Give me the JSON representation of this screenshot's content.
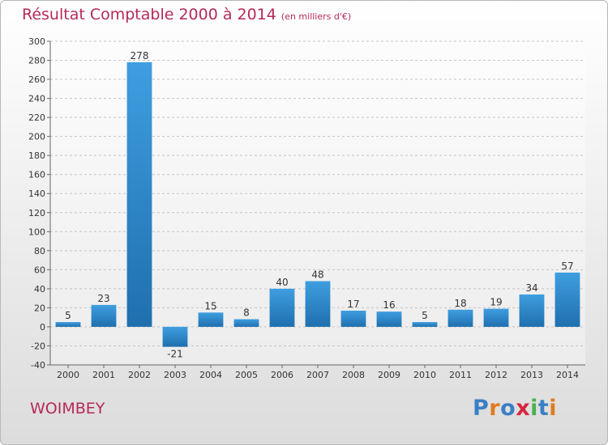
{
  "header": {
    "title": "Résultat Comptable 2000 à 2014",
    "subtitle": "(en milliers d'€)"
  },
  "footer": {
    "commune": "WOIMBEY",
    "logo_letters": [
      {
        "char": "P",
        "color": "#3b7fc4"
      },
      {
        "char": "r",
        "color": "#e07a1f"
      },
      {
        "char": "o",
        "color": "#3b7fc4"
      },
      {
        "char": "x",
        "color": "#d6253f"
      },
      {
        "char": "i",
        "color": "#4caf50"
      },
      {
        "char": "t",
        "color": "#3b7fc4"
      },
      {
        "char": "i",
        "color": "#e07a1f"
      }
    ]
  },
  "chart_data": {
    "type": "bar",
    "title": "Résultat Comptable 2000 à 2014",
    "subtitle": "(en milliers d'€)",
    "categories": [
      "2000",
      "2001",
      "2002",
      "2003",
      "2004",
      "2005",
      "2006",
      "2007",
      "2008",
      "2009",
      "2010",
      "2011",
      "2012",
      "2013",
      "2014"
    ],
    "values": [
      5,
      23,
      278,
      -21,
      15,
      8,
      40,
      48,
      17,
      16,
      5,
      18,
      19,
      34,
      57
    ],
    "ylim": [
      -40,
      300
    ],
    "yticks": [
      -40,
      -20,
      0,
      20,
      40,
      60,
      80,
      100,
      120,
      140,
      160,
      180,
      200,
      220,
      240,
      260,
      280,
      300
    ],
    "grid": true,
    "bar_color": "#3f9ee0",
    "bar_color_dark": "#1f6fae"
  }
}
